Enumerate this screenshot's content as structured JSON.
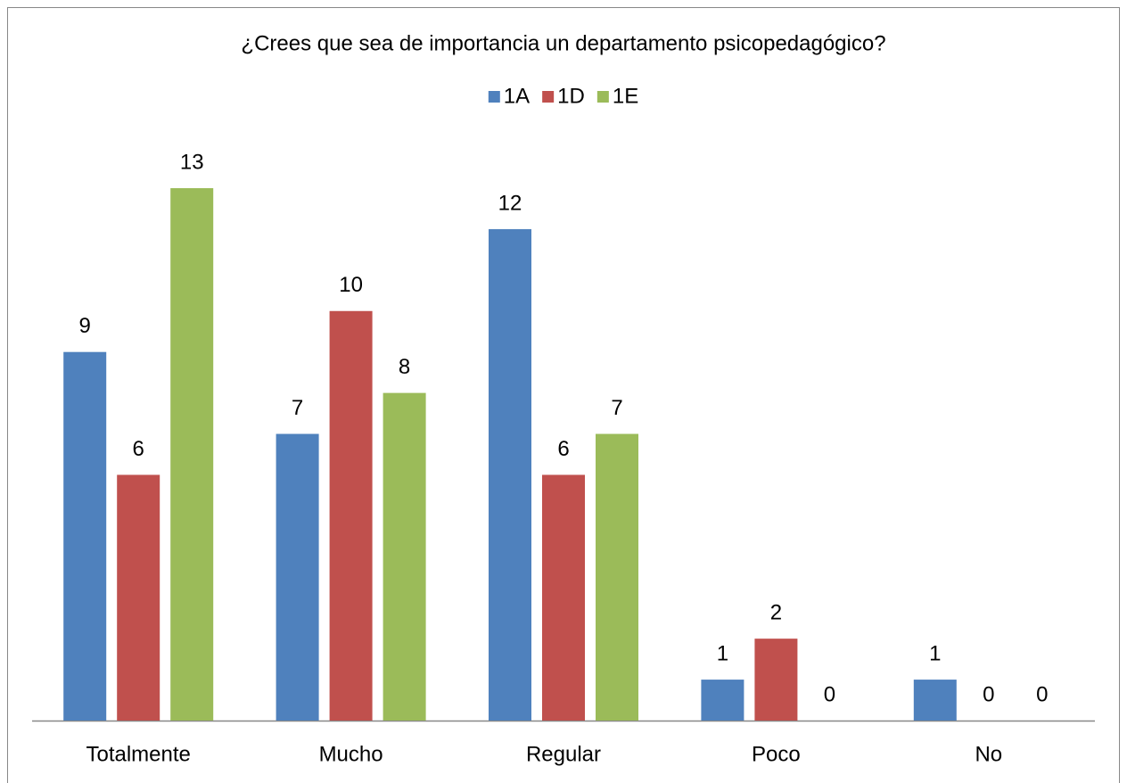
{
  "chart_data": {
    "type": "bar",
    "title": "¿Crees que sea de importancia un departamento psicopedagógico?",
    "categories": [
      "Totalmente",
      "Mucho",
      "Regular",
      "Poco",
      "No"
    ],
    "series": [
      {
        "name": "1A",
        "color": "#4f81bd",
        "values": [
          9,
          7,
          12,
          1,
          1
        ]
      },
      {
        "name": "1D",
        "color": "#c0504d",
        "values": [
          6,
          10,
          6,
          2,
          0
        ]
      },
      {
        "name": "1E",
        "color": "#9bbb59",
        "values": [
          13,
          8,
          7,
          0,
          0
        ]
      }
    ],
    "legend": "top"
  }
}
